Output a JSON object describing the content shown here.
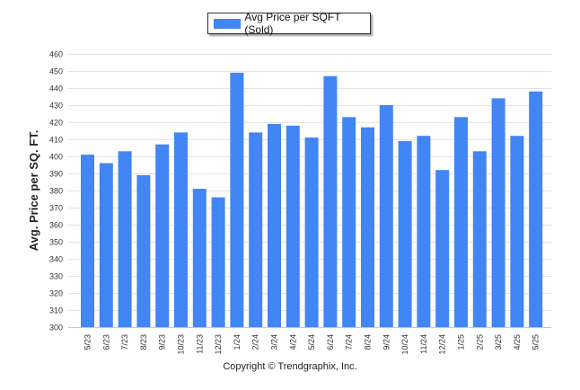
{
  "chart_data": {
    "type": "bar",
    "legend": "Avg Price per SQFT (Sold)",
    "legend_position": "top-center",
    "ylabel": "Avg. Price per SQ. FT.",
    "xlabel": "",
    "ylim": [
      300,
      460
    ],
    "yticks": [
      300,
      310,
      320,
      330,
      340,
      350,
      360,
      370,
      380,
      390,
      400,
      410,
      420,
      430,
      440,
      450,
      460
    ],
    "grid": true,
    "bar_color": "#4285f4",
    "categories": [
      "5/23",
      "6/23",
      "7/23",
      "8/23",
      "9/23",
      "10/23",
      "11/23",
      "12/23",
      "1/24",
      "2/24",
      "3/24",
      "4/24",
      "5/24",
      "6/24",
      "7/24",
      "8/24",
      "9/24",
      "10/24",
      "11/24",
      "12/24",
      "1/25",
      "2/25",
      "3/25",
      "4/25",
      "5/25"
    ],
    "series": [
      {
        "name": "Avg Price per SQFT (Sold)",
        "values": [
          401,
          396,
          403,
          389,
          407,
          414,
          381,
          376,
          449,
          414,
          419,
          418,
          411,
          447,
          423,
          417,
          430,
          409,
          412,
          392,
          423,
          403,
          434,
          412,
          438
        ]
      }
    ]
  },
  "footer": {
    "copyright": "Copyright © Trendgraphix, Inc."
  }
}
